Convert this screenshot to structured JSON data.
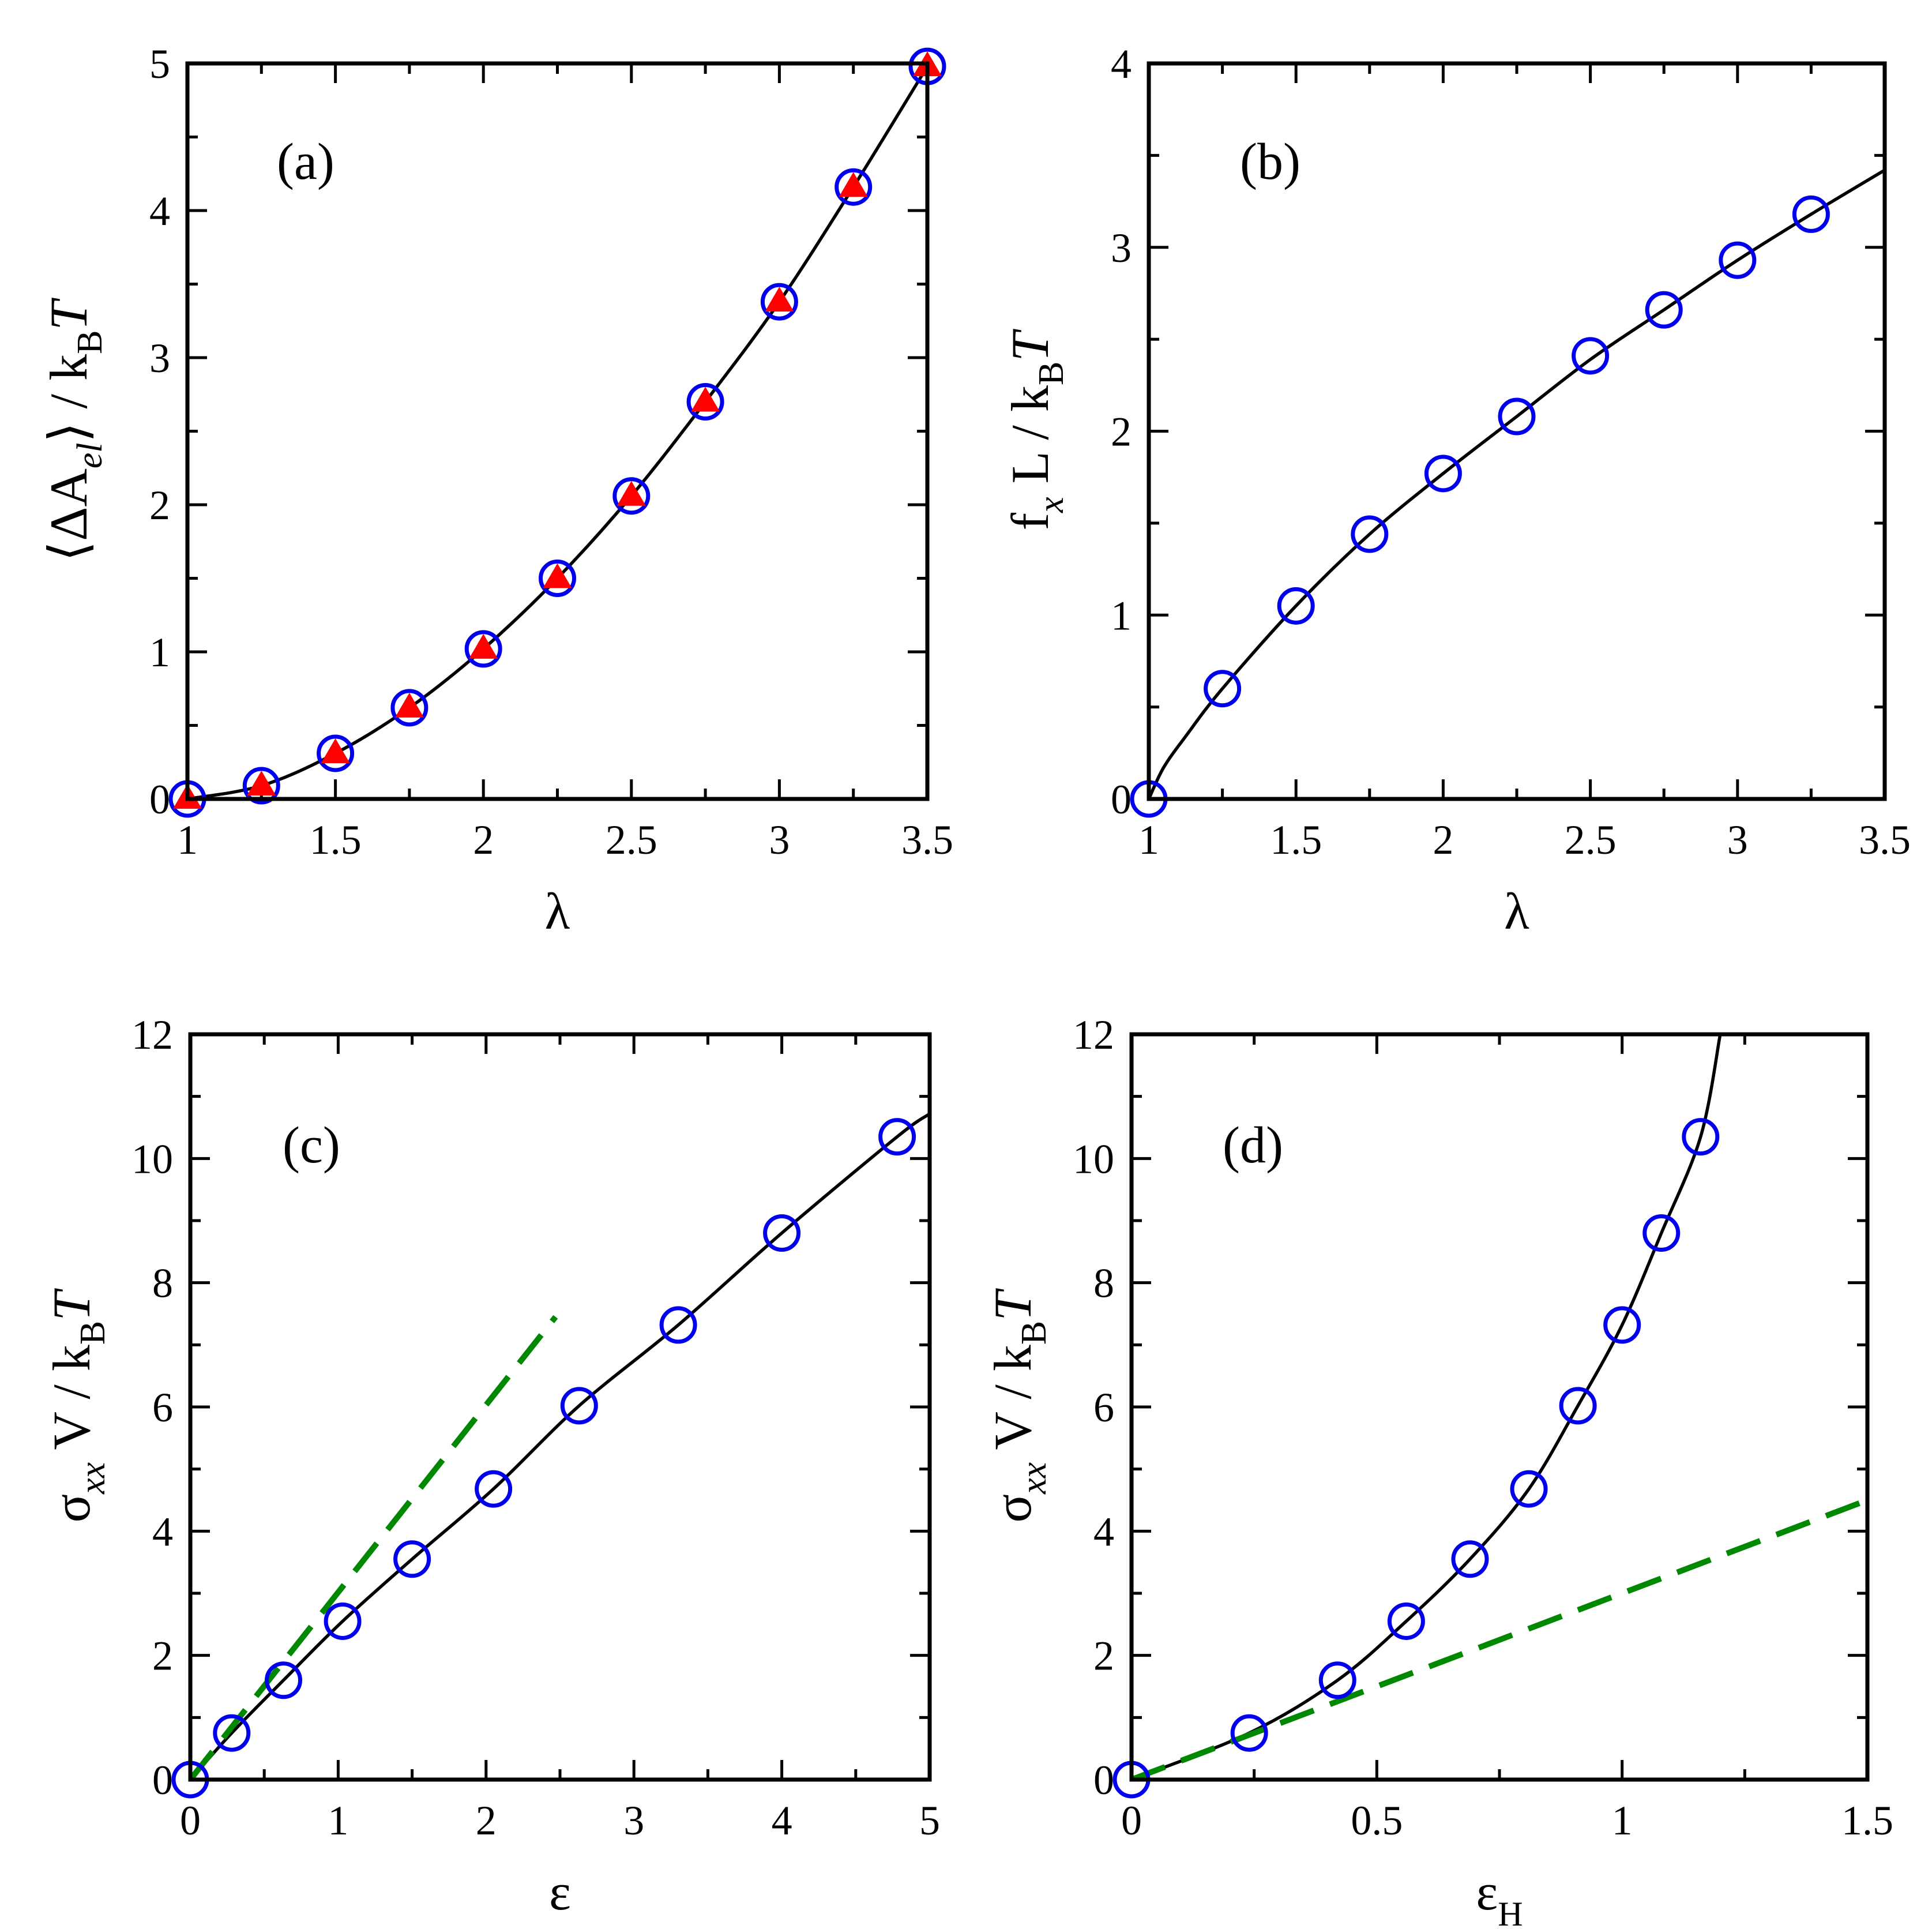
{
  "colors": {
    "circle": "#0000ee",
    "triangle": "#ff0000",
    "fit_line": "#000000",
    "dashed": "#008800",
    "frame": "#000000"
  },
  "chart_data": [
    {
      "type": "scatter",
      "panel_label": "(a)",
      "xlabel": "λ",
      "ylabel": {
        "prefix": "⟨ΔA",
        "sub": "el",
        "mid": "⟩ / k",
        "sub2": "B",
        "suffix": "T"
      },
      "xlim": [
        1,
        3.5
      ],
      "ylim": [
        0,
        5
      ],
      "xticks": [
        1,
        1.5,
        2,
        2.5,
        3,
        3.5
      ],
      "xtick_labels": [
        "1",
        "1.5",
        "2",
        "2.5",
        "3",
        "3.5"
      ],
      "yticks": [
        0,
        1,
        2,
        3,
        4,
        5
      ],
      "ytick_labels": [
        "0",
        "1",
        "2",
        "3",
        "4",
        "5"
      ],
      "x_minor_step": 0.25,
      "y_minor_step": 0.5,
      "series": [
        {
          "name": "circles",
          "marker": "circle",
          "x": [
            1,
            1.25,
            1.5,
            1.75,
            2,
            2.25,
            2.5,
            2.75,
            3,
            3.25,
            3.5
          ],
          "y": [
            0,
            0.09,
            0.31,
            0.62,
            1.02,
            1.5,
            2.06,
            2.7,
            3.38,
            4.16,
            4.98
          ]
        },
        {
          "name": "triangles",
          "marker": "triangle",
          "x": [
            1,
            1.25,
            1.5,
            1.75,
            2,
            2.25,
            2.5,
            2.75,
            3,
            3.25,
            3.5
          ],
          "y": [
            0,
            0.09,
            0.31,
            0.62,
            1.02,
            1.5,
            2.06,
            2.7,
            3.38,
            4.16,
            4.98
          ]
        },
        {
          "name": "fit",
          "line": "solid",
          "x": [
            1,
            1.25,
            1.5,
            1.75,
            2,
            2.25,
            2.5,
            2.75,
            3,
            3.25,
            3.5
          ],
          "y": [
            0,
            0.09,
            0.31,
            0.62,
            1.02,
            1.5,
            2.06,
            2.7,
            3.38,
            4.16,
            4.98
          ]
        }
      ]
    },
    {
      "type": "scatter",
      "panel_label": "(b)",
      "xlabel": "λ",
      "ylabel": {
        "prefix": "f",
        "sub": "x",
        "mid": " L / k",
        "sub2": "B",
        "suffix": "T"
      },
      "xlim": [
        1,
        3.5
      ],
      "ylim": [
        0,
        4
      ],
      "xticks": [
        1,
        1.5,
        2,
        2.5,
        3,
        3.5
      ],
      "xtick_labels": [
        "1",
        "1.5",
        "2",
        "2.5",
        "3",
        "3.5"
      ],
      "yticks": [
        0,
        1,
        2,
        3,
        4
      ],
      "ytick_labels": [
        "0",
        "1",
        "2",
        "3",
        "4"
      ],
      "x_minor_step": 0.25,
      "y_minor_step": 0.5,
      "series": [
        {
          "name": "circles",
          "marker": "circle",
          "x": [
            1,
            1.25,
            1.5,
            1.75,
            2,
            2.25,
            2.5,
            2.75,
            3,
            3.25
          ],
          "y": [
            0,
            0.6,
            1.05,
            1.44,
            1.77,
            2.08,
            2.41,
            2.66,
            2.93,
            3.18
          ]
        },
        {
          "name": "fit",
          "line": "solid",
          "x": [
            1,
            1.05,
            1.125,
            1.25,
            1.5,
            1.75,
            2,
            2.25,
            2.5,
            2.75,
            3,
            3.25,
            3.5
          ],
          "y": [
            0,
            0.17,
            0.34,
            0.6,
            1.05,
            1.44,
            1.77,
            2.08,
            2.39,
            2.66,
            2.93,
            3.18,
            3.42
          ]
        }
      ]
    },
    {
      "type": "scatter",
      "panel_label": "(c)",
      "xlabel": "ε",
      "xlabel_sub": "",
      "ylabel": {
        "prefix": "σ",
        "sub": "xx",
        "mid": " V / k",
        "sub2": "B",
        "suffix": "T"
      },
      "xlim": [
        0,
        5
      ],
      "ylim": [
        0,
        12
      ],
      "xticks": [
        0,
        1,
        2,
        3,
        4,
        5
      ],
      "xtick_labels": [
        "0",
        "1",
        "2",
        "3",
        "4",
        "5"
      ],
      "yticks": [
        0,
        2,
        4,
        6,
        8,
        10,
        12
      ],
      "ytick_labels": [
        "0",
        "2",
        "4",
        "6",
        "8",
        "10",
        "12"
      ],
      "x_minor_step": 0.5,
      "y_minor_step": 1,
      "series": [
        {
          "name": "circles",
          "marker": "circle",
          "x": [
            0,
            0.28,
            0.63,
            1.03,
            1.5,
            2.05,
            2.63,
            3.3,
            4.0,
            4.78
          ],
          "y": [
            0,
            0.75,
            1.6,
            2.55,
            3.55,
            4.68,
            6.02,
            7.32,
            8.8,
            10.35
          ]
        },
        {
          "name": "fit",
          "line": "solid",
          "x": [
            0,
            0.28,
            0.63,
            1.03,
            1.5,
            2.05,
            2.63,
            3.3,
            4.0,
            4.78,
            5.0
          ],
          "y": [
            0,
            0.75,
            1.6,
            2.55,
            3.55,
            4.68,
            6.02,
            7.32,
            8.8,
            10.35,
            10.72
          ]
        },
        {
          "name": "linear",
          "line": "dashed",
          "x": [
            0,
            2.47
          ],
          "y": [
            0,
            7.45
          ]
        }
      ]
    },
    {
      "type": "scatter",
      "panel_label": "(d)",
      "xlabel": "ε",
      "xlabel_sub": "H",
      "ylabel": {
        "prefix": "σ",
        "sub": "xx",
        "mid": " V / k",
        "sub2": "B",
        "suffix": "T"
      },
      "xlim": [
        0,
        1.5
      ],
      "ylim": [
        0,
        12
      ],
      "xticks": [
        0,
        0.5,
        1,
        1.5
      ],
      "xtick_labels": [
        "0",
        "0.5",
        "1",
        "1.5"
      ],
      "yticks": [
        0,
        2,
        4,
        6,
        8,
        10,
        12
      ],
      "ytick_labels": [
        "0",
        "2",
        "4",
        "6",
        "8",
        "10",
        "12"
      ],
      "x_minor_step": 0.25,
      "y_minor_step": 1,
      "series": [
        {
          "name": "circles",
          "marker": "circle",
          "x": [
            0,
            0.24,
            0.42,
            0.56,
            0.69,
            0.81,
            0.91,
            1.0,
            1.08,
            1.16
          ],
          "y": [
            0,
            0.75,
            1.6,
            2.55,
            3.55,
            4.68,
            6.02,
            7.32,
            8.8,
            10.35
          ]
        },
        {
          "name": "fit",
          "line": "solid",
          "x": [
            0,
            0.24,
            0.42,
            0.56,
            0.69,
            0.81,
            0.91,
            1.0,
            1.08,
            1.16,
            1.2
          ],
          "y": [
            0,
            0.75,
            1.6,
            2.55,
            3.55,
            4.68,
            6.02,
            7.32,
            8.8,
            10.35,
            12.0
          ]
        },
        {
          "name": "linear",
          "line": "dashed",
          "x": [
            0,
            1.5
          ],
          "y": [
            0,
            4.5
          ]
        }
      ]
    }
  ]
}
